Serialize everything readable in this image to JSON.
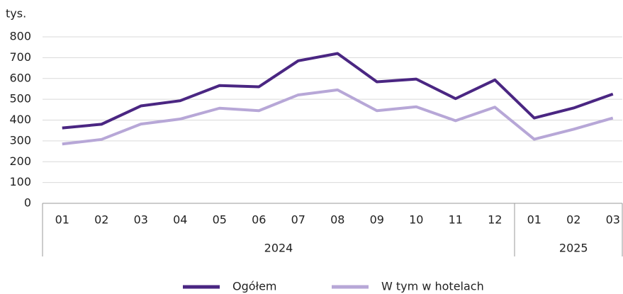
{
  "chart_data": {
    "type": "line",
    "y_label": "tys.",
    "groups": [
      {
        "label": "2024",
        "categories": [
          "01",
          "02",
          "03",
          "04",
          "05",
          "06",
          "07",
          "08",
          "09",
          "10",
          "11",
          "12"
        ]
      },
      {
        "label": "2025",
        "categories": [
          "01",
          "02",
          "03"
        ]
      }
    ],
    "series": [
      {
        "name": "Ogółem",
        "color": "#4a2682",
        "values": [
          362,
          380,
          468,
          493,
          566,
          560,
          685,
          720,
          584,
          597,
          503,
          593,
          410,
          458,
          525
        ]
      },
      {
        "name": "W tym w hotelach",
        "color": "#b7a7d7",
        "values": [
          285,
          307,
          381,
          405,
          457,
          445,
          521,
          545,
          445,
          464,
          397,
          462,
          308,
          356,
          410
        ]
      }
    ],
    "ylim": [
      0,
      800
    ],
    "yticks": [
      0,
      100,
      200,
      300,
      400,
      500,
      600,
      700,
      800
    ],
    "grid": true
  }
}
